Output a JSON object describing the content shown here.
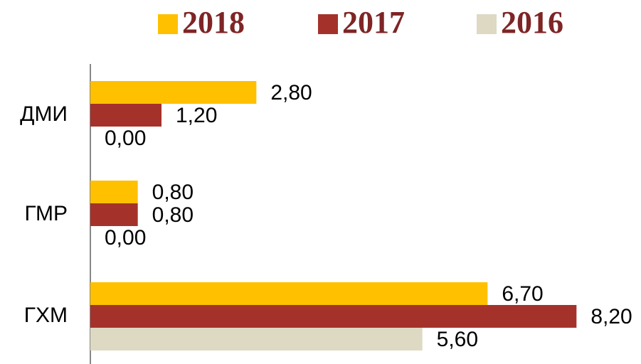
{
  "chart_data": {
    "type": "bar",
    "orientation": "horizontal",
    "categories": [
      "ДМИ",
      "ГМР",
      "ГХМ"
    ],
    "series": [
      {
        "name": "2018",
        "color": "#FFC000",
        "values": [
          2.8,
          0.8,
          6.7
        ],
        "value_labels": [
          "2,80",
          "0,80",
          "6,70"
        ]
      },
      {
        "name": "2017",
        "color": "#A5322A",
        "values": [
          1.2,
          0.8,
          8.2
        ],
        "value_labels": [
          "1,20",
          "0,80",
          "8,20"
        ]
      },
      {
        "name": "2016",
        "color": "#DDD9C3",
        "values": [
          0,
          0,
          5.6
        ],
        "value_labels": [
          "0,00",
          "0,00",
          "5,60"
        ]
      }
    ],
    "xlim": [
      0,
      9
    ],
    "legend": "top"
  }
}
